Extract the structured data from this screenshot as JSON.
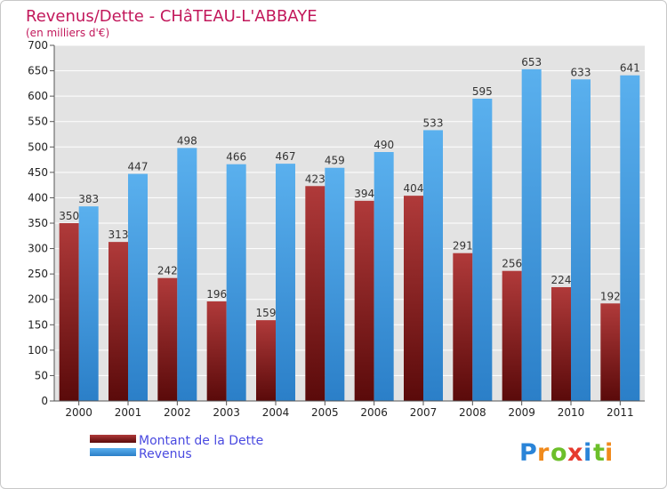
{
  "chart_data": {
    "type": "bar",
    "title": "Revenus/Dette - CHâTEAU-L'ABBAYE",
    "subtitle": "(en milliers d'€)",
    "categories": [
      "2000",
      "2001",
      "2002",
      "2003",
      "2004",
      "2005",
      "2006",
      "2007",
      "2008",
      "2009",
      "2010",
      "2011"
    ],
    "series": [
      {
        "name": "Montant de la Dette",
        "color": "#8b1a1a",
        "values": [
          350,
          313,
          242,
          196,
          159,
          423,
          394,
          404,
          291,
          256,
          224,
          192
        ]
      },
      {
        "name": "Revenus",
        "color": "#4aa3e8",
        "values": [
          383,
          447,
          498,
          466,
          467,
          459,
          490,
          533,
          595,
          653,
          633,
          641
        ]
      }
    ],
    "ylim": [
      0,
      700
    ],
    "yticks": [
      0,
      50,
      100,
      150,
      200,
      250,
      300,
      350,
      400,
      450,
      500,
      550,
      600,
      650,
      700
    ],
    "grid": true,
    "legend": "bottom-left"
  },
  "logo": {
    "letters": [
      {
        "ch": "P",
        "color": "#2a84d8"
      },
      {
        "ch": "r",
        "color": "#f08a1c"
      },
      {
        "ch": "o",
        "color": "#6cbf2a"
      },
      {
        "ch": "x",
        "color": "#e63a2e"
      },
      {
        "ch": "i",
        "color": "#2a84d8"
      },
      {
        "ch": "t",
        "color": "#6cbf2a"
      },
      {
        "ch": "i",
        "color": "#f08a1c"
      }
    ]
  }
}
